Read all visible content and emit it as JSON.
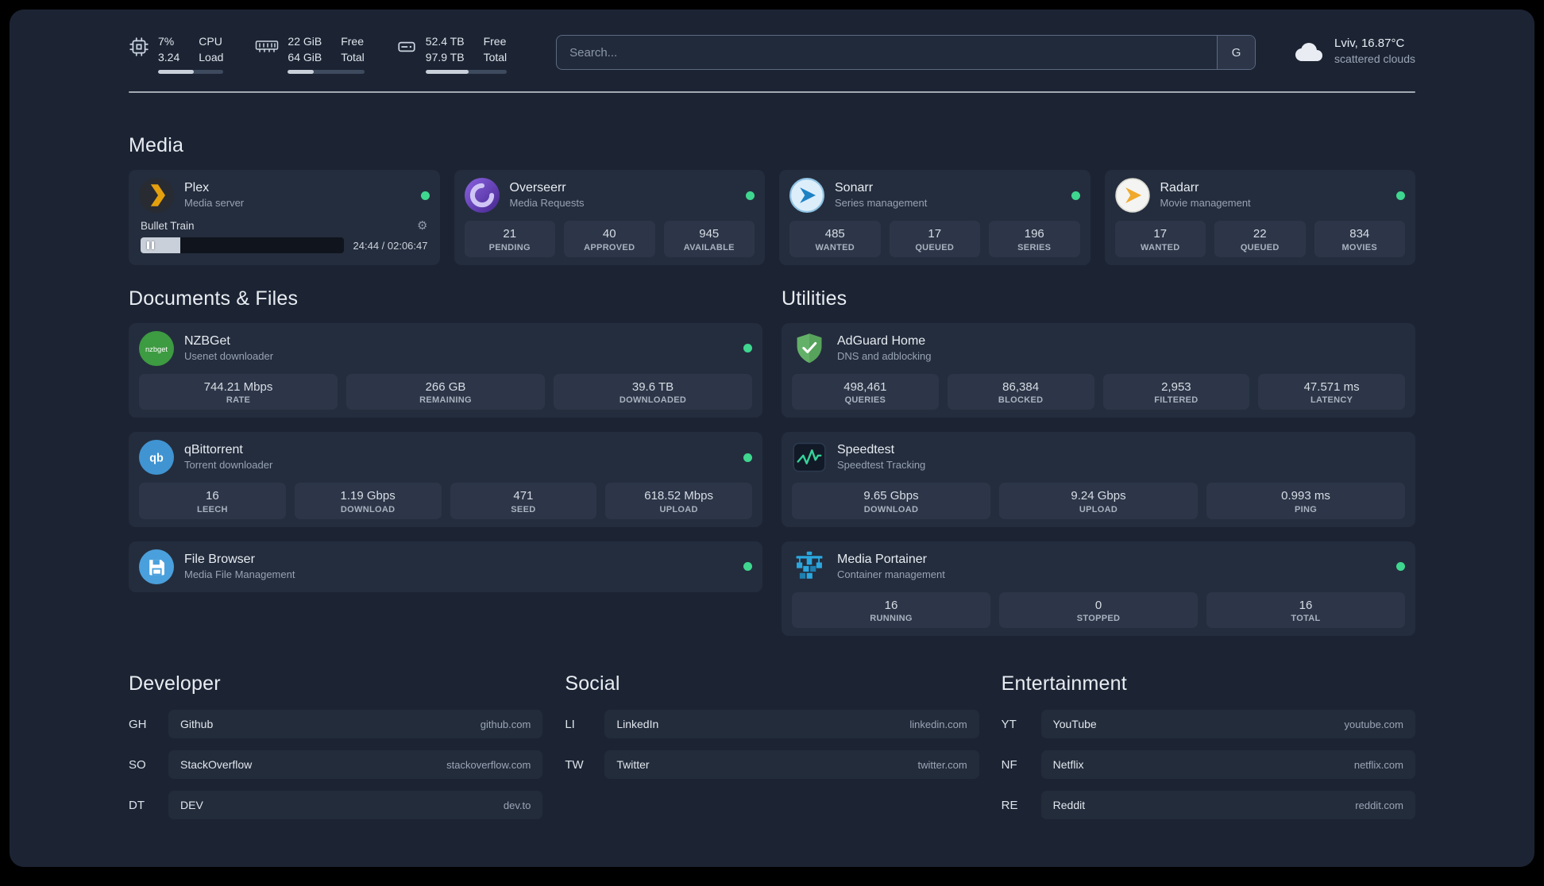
{
  "colors": {
    "status_online": "#3fd68f",
    "accent_green": "#36d399"
  },
  "icons": {
    "gear": "⚙"
  },
  "topbar": {
    "cpu": {
      "value_top": "7%",
      "value_bottom": "3.24",
      "label_top": "CPU",
      "label_bottom": "Load",
      "bar_pct": 55
    },
    "memory": {
      "value_top": "22 GiB",
      "value_bottom": "64 GiB",
      "label_top": "Free",
      "label_bottom": "Total",
      "bar_pct": 34
    },
    "disk": {
      "value_top": "52.4 TB",
      "value_bottom": "97.9 TB",
      "label_top": "Free",
      "label_bottom": "Total",
      "bar_pct": 53
    },
    "search": {
      "placeholder": "Search...",
      "provider_button": "G"
    },
    "weather": {
      "location": "Lviv, 16.87°C",
      "condition": "scattered clouds"
    }
  },
  "sections": {
    "media": "Media",
    "documents": "Documents & Files",
    "utilities": "Utilities",
    "developer": "Developer",
    "social": "Social",
    "entertainment": "Entertainment"
  },
  "services": {
    "plex": {
      "name": "Plex",
      "subtitle": "Media server",
      "player": {
        "title": "Bullet Train",
        "time": "24:44 / 02:06:47",
        "progress_pct": 19.5
      }
    },
    "overseerr": {
      "name": "Overseerr",
      "subtitle": "Media Requests",
      "stats": [
        {
          "value": "21",
          "label": "PENDING"
        },
        {
          "value": "40",
          "label": "APPROVED"
        },
        {
          "value": "945",
          "label": "AVAILABLE"
        }
      ]
    },
    "sonarr": {
      "name": "Sonarr",
      "subtitle": "Series management",
      "stats": [
        {
          "value": "485",
          "label": "WANTED"
        },
        {
          "value": "17",
          "label": "QUEUED"
        },
        {
          "value": "196",
          "label": "SERIES"
        }
      ]
    },
    "radarr": {
      "name": "Radarr",
      "subtitle": "Movie management",
      "stats": [
        {
          "value": "17",
          "label": "WANTED"
        },
        {
          "value": "22",
          "label": "QUEUED"
        },
        {
          "value": "834",
          "label": "MOVIES"
        }
      ]
    },
    "nzbget": {
      "name": "NZBGet",
      "subtitle": "Usenet downloader",
      "icon_text": "nzbget",
      "stats": [
        {
          "value": "744.21 Mbps",
          "label": "RATE"
        },
        {
          "value": "266 GB",
          "label": "REMAINING"
        },
        {
          "value": "39.6 TB",
          "label": "DOWNLOADED"
        }
      ]
    },
    "qbittorrent": {
      "name": "qBittorrent",
      "subtitle": "Torrent downloader",
      "icon_text": "qb",
      "stats": [
        {
          "value": "16",
          "label": "LEECH"
        },
        {
          "value": "1.19 Gbps",
          "label": "DOWNLOAD"
        },
        {
          "value": "471",
          "label": "SEED"
        },
        {
          "value": "618.52 Mbps",
          "label": "UPLOAD"
        }
      ]
    },
    "filebrowser": {
      "name": "File Browser",
      "subtitle": "Media File Management"
    },
    "adguard": {
      "name": "AdGuard Home",
      "subtitle": "DNS and adblocking",
      "stats": [
        {
          "value": "498,461",
          "label": "QUERIES"
        },
        {
          "value": "86,384",
          "label": "BLOCKED"
        },
        {
          "value": "2,953",
          "label": "FILTERED"
        },
        {
          "value": "47.571 ms",
          "label": "LATENCY"
        }
      ]
    },
    "speedtest": {
      "name": "Speedtest",
      "subtitle": "Speedtest Tracking",
      "stats": [
        {
          "value": "9.65 Gbps",
          "label": "DOWNLOAD"
        },
        {
          "value": "9.24 Gbps",
          "label": "UPLOAD"
        },
        {
          "value": "0.993 ms",
          "label": "PING"
        }
      ]
    },
    "portainer": {
      "name": "Media Portainer",
      "subtitle": "Container management",
      "stats": [
        {
          "value": "16",
          "label": "RUNNING"
        },
        {
          "value": "0",
          "label": "STOPPED"
        },
        {
          "value": "16",
          "label": "TOTAL"
        }
      ]
    }
  },
  "bookmarks": {
    "developer": [
      {
        "abbr": "GH",
        "name": "Github",
        "domain": "github.com"
      },
      {
        "abbr": "SO",
        "name": "StackOverflow",
        "domain": "stackoverflow.com"
      },
      {
        "abbr": "DT",
        "name": "DEV",
        "domain": "dev.to"
      }
    ],
    "social": [
      {
        "abbr": "LI",
        "name": "LinkedIn",
        "domain": "linkedin.com"
      },
      {
        "abbr": "TW",
        "name": "Twitter",
        "domain": "twitter.com"
      }
    ],
    "entertainment": [
      {
        "abbr": "YT",
        "name": "YouTube",
        "domain": "youtube.com"
      },
      {
        "abbr": "NF",
        "name": "Netflix",
        "domain": "netflix.com"
      },
      {
        "abbr": "RE",
        "name": "Reddit",
        "domain": "reddit.com"
      }
    ]
  }
}
